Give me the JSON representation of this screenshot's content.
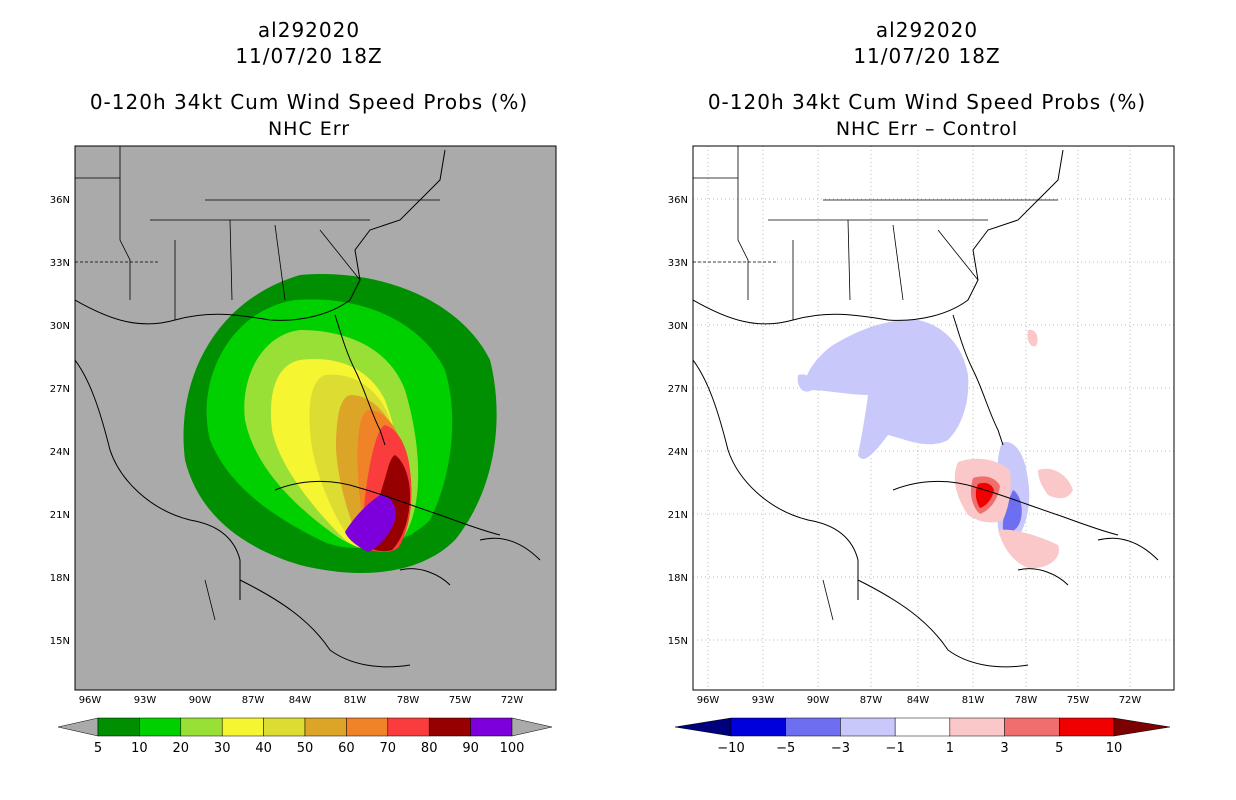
{
  "panels": [
    {
      "storm_id": "al292020",
      "datetime": "11/07/20 18Z",
      "title": "0-120h 34kt Cum Wind Speed Probs (%)",
      "subtitle": "NHC Err",
      "colorbar": {
        "labels": [
          "5",
          "10",
          "20",
          "30",
          "40",
          "50",
          "60",
          "70",
          "80",
          "90",
          "100"
        ],
        "colors": [
          "#008f00",
          "#00cf00",
          "#99e036",
          "#f5f532",
          "#dcdc32",
          "#dca528",
          "#f08228",
          "#fa3c3c",
          "#960000",
          "#7d00dc"
        ],
        "under_color": "#aaaaaa",
        "over_color": "#aaaaaa"
      }
    },
    {
      "storm_id": "al292020",
      "datetime": "11/07/20 18Z",
      "title": "0-120h 34kt Cum Wind Speed Probs (%)",
      "subtitle": "NHC Err – Control",
      "colorbar": {
        "labels": [
          "−10",
          "−5",
          "−3",
          "−1",
          "1",
          "3",
          "5",
          "10"
        ],
        "colors": [
          "#0000dc",
          "#6e6ef0",
          "#c8c8fa",
          "#ffffff",
          "#fac8c8",
          "#f06e6e",
          "#f00000"
        ],
        "under_color": "#00007d",
        "over_color": "#7d0000"
      }
    }
  ],
  "axes": {
    "lon_ticks": [
      "96W",
      "93W",
      "90W",
      "87W",
      "84W",
      "81W",
      "78W",
      "75W",
      "72W"
    ],
    "lat_ticks": [
      "36N",
      "33N",
      "30N",
      "27N",
      "24N",
      "21N",
      "18N",
      "15N"
    ]
  }
}
